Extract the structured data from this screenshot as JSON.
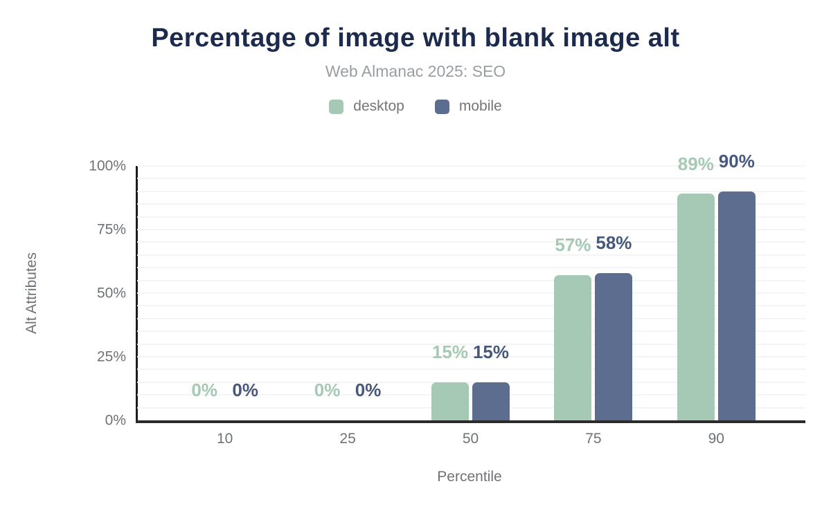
{
  "header": {
    "title": "Percentage of image with blank image alt",
    "subtitle": "Web Almanac 2025: SEO"
  },
  "legend": [
    {
      "label": "desktop",
      "color": "#a5c9b4"
    },
    {
      "label": "mobile",
      "color": "#5c6d90"
    }
  ],
  "chart_data": {
    "type": "bar",
    "title": "Percentage of image with blank image alt",
    "subtitle": "Web Almanac 2025: SEO",
    "categories": [
      "10",
      "25",
      "50",
      "75",
      "90"
    ],
    "series": [
      {
        "name": "desktop",
        "color": "#a5c9b4",
        "label_color": "#a5c9b4",
        "values": [
          0,
          0,
          15,
          57,
          89
        ],
        "labels": [
          "0%",
          "0%",
          "15%",
          "57%",
          "89%"
        ]
      },
      {
        "name": "mobile",
        "color": "#5c6d90",
        "label_color": "#46587c",
        "values": [
          0,
          0,
          15,
          58,
          90
        ],
        "labels": [
          "0%",
          "0%",
          "15%",
          "58%",
          "90%"
        ]
      }
    ],
    "xlabel": "Percentile",
    "ylabel": "Alt Attributes",
    "ylim": [
      0,
      100
    ],
    "yticks": [
      {
        "label": "0%",
        "value": 0
      },
      {
        "label": "25%",
        "value": 25
      },
      {
        "label": "50%",
        "value": 50
      },
      {
        "label": "75%",
        "value": 75
      },
      {
        "label": "100%",
        "value": 100
      }
    ],
    "grid": "horizontal, minor lines every 5%",
    "legend_position": "top center",
    "axis_color": "#1c1c1c",
    "tick_text_color": "#6e7277",
    "title_color": "#1c2b4d"
  }
}
